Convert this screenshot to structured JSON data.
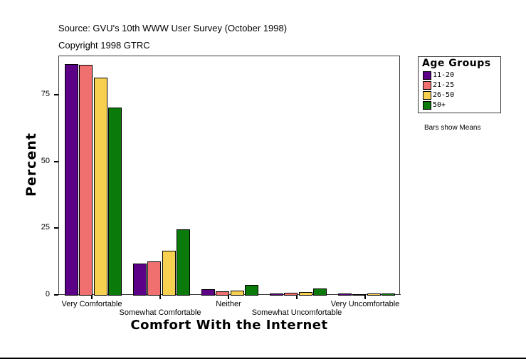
{
  "header": {
    "source": "Source: GVU's 10th WWW User Survey (October 1998)",
    "copyright": "Copyright 1998 GTRC"
  },
  "legend": {
    "title": "Age Groups",
    "items": [
      {
        "label": "11-20",
        "color": "#5B0087"
      },
      {
        "label": "21-25",
        "color": "#F07070"
      },
      {
        "label": "26-50",
        "color": "#F8D050"
      },
      {
        "label": "50+",
        "color": "#0A7A0A"
      }
    ]
  },
  "note": "Bars show Means",
  "axes": {
    "ylabel": "Percent",
    "xlabel": "Comfort With the Internet",
    "yticks": [
      "0",
      "25",
      "50",
      "75"
    ]
  },
  "chart_data": {
    "type": "bar",
    "title": "Source: GVU's 10th WWW User Survey (October 1998)",
    "subtitle": "Copyright 1998 GTRC",
    "xlabel": "Comfort With the Internet",
    "ylabel": "Percent",
    "ylim": [
      0,
      86
    ],
    "yticks": [
      0,
      25,
      50,
      75
    ],
    "grid": false,
    "legend_position": "right",
    "legend_title": "Age Groups",
    "annotation": "Bars show Means",
    "categories": [
      "Very Comfortable",
      "Somewhat Comfortable",
      "Neither",
      "Somewhat Uncomfortable",
      "Very Uncomfortable"
    ],
    "series": [
      {
        "name": "11-20",
        "color": "#5B0087",
        "values": [
          86.4,
          11.7,
          2.1,
          0.5,
          0.5
        ]
      },
      {
        "name": "21-25",
        "color": "#F07070",
        "values": [
          86.1,
          12.5,
          1.3,
          0.8,
          0.2
        ]
      },
      {
        "name": "26-50",
        "color": "#F8D050",
        "values": [
          81.3,
          16.5,
          1.6,
          1.1,
          0.5
        ]
      },
      {
        "name": "50+",
        "color": "#0A7A0A",
        "values": [
          70.1,
          24.5,
          3.7,
          2.4,
          0.5
        ]
      }
    ]
  }
}
